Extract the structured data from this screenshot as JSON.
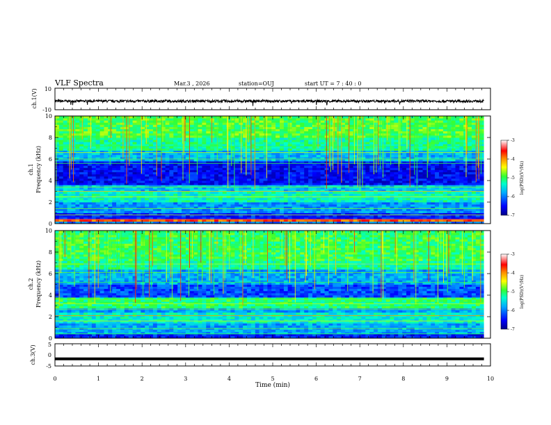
{
  "header": {
    "title": "VLF Spectra",
    "date": "Mar.3  , 2026",
    "station": "station=OUJ",
    "start_ut": "start  UT  =   7 : 40 : 0"
  },
  "colors": {
    "colormap": [
      "#000088",
      "#0000ff",
      "#00aaff",
      "#00ffcc",
      "#33ff33",
      "#ffff00",
      "#ff8800",
      "#ff0000",
      "#ffffff"
    ]
  },
  "chart_data": [
    {
      "type": "line",
      "panel": "ch1-waveform",
      "ylabel": "ch.1(V)",
      "ylim": [
        -10,
        10
      ],
      "ytick_labels": [
        "10",
        "-10"
      ],
      "baseline_v": -2,
      "noise_amplitude_v": 1.2,
      "xlim": [
        0,
        10
      ]
    },
    {
      "type": "heatmap",
      "panel": "ch1-spectrogram",
      "ylabel": "ch.1",
      "ylabel2": "Frequency  (kHz)",
      "ylim": [
        0,
        10
      ],
      "ytick_labels": [
        "0",
        "2",
        "4",
        "6",
        "8",
        "10"
      ],
      "xlim": [
        0,
        9.85
      ],
      "colorbar": {
        "label": "log(PSD)(V²/Hz)",
        "range": [
          -7,
          -3
        ],
        "tick_labels": [
          "-3",
          "-4",
          "-5",
          "-6",
          "-7"
        ]
      }
    },
    {
      "type": "heatmap",
      "panel": "ch2-spectrogram",
      "ylabel": "ch.2",
      "ylabel2": "Frequency  (kHz)",
      "ylim": [
        0,
        10
      ],
      "ytick_labels": [
        "0",
        "2",
        "4",
        "6",
        "8",
        "10"
      ],
      "xlim": [
        0,
        9.85
      ],
      "colorbar": {
        "label": "log(PSD)(V²/Hz)",
        "range": [
          -7,
          -3
        ],
        "tick_labels": [
          "-3",
          "-4",
          "-5",
          "-6",
          "-7"
        ]
      }
    },
    {
      "type": "line",
      "panel": "ch3-waveform",
      "ylabel": "ch.3(V)",
      "ylim": [
        -5,
        5
      ],
      "ytick_labels": [
        "5",
        "0",
        "-5"
      ],
      "baseline_v": -1.8,
      "xlim": [
        0,
        10
      ]
    }
  ],
  "xaxis": {
    "label": "Time  (min)",
    "tick_labels": [
      "0",
      "1",
      "2",
      "3",
      "4",
      "5",
      "6",
      "7",
      "8",
      "9",
      "10"
    ],
    "range": [
      0,
      10
    ]
  }
}
